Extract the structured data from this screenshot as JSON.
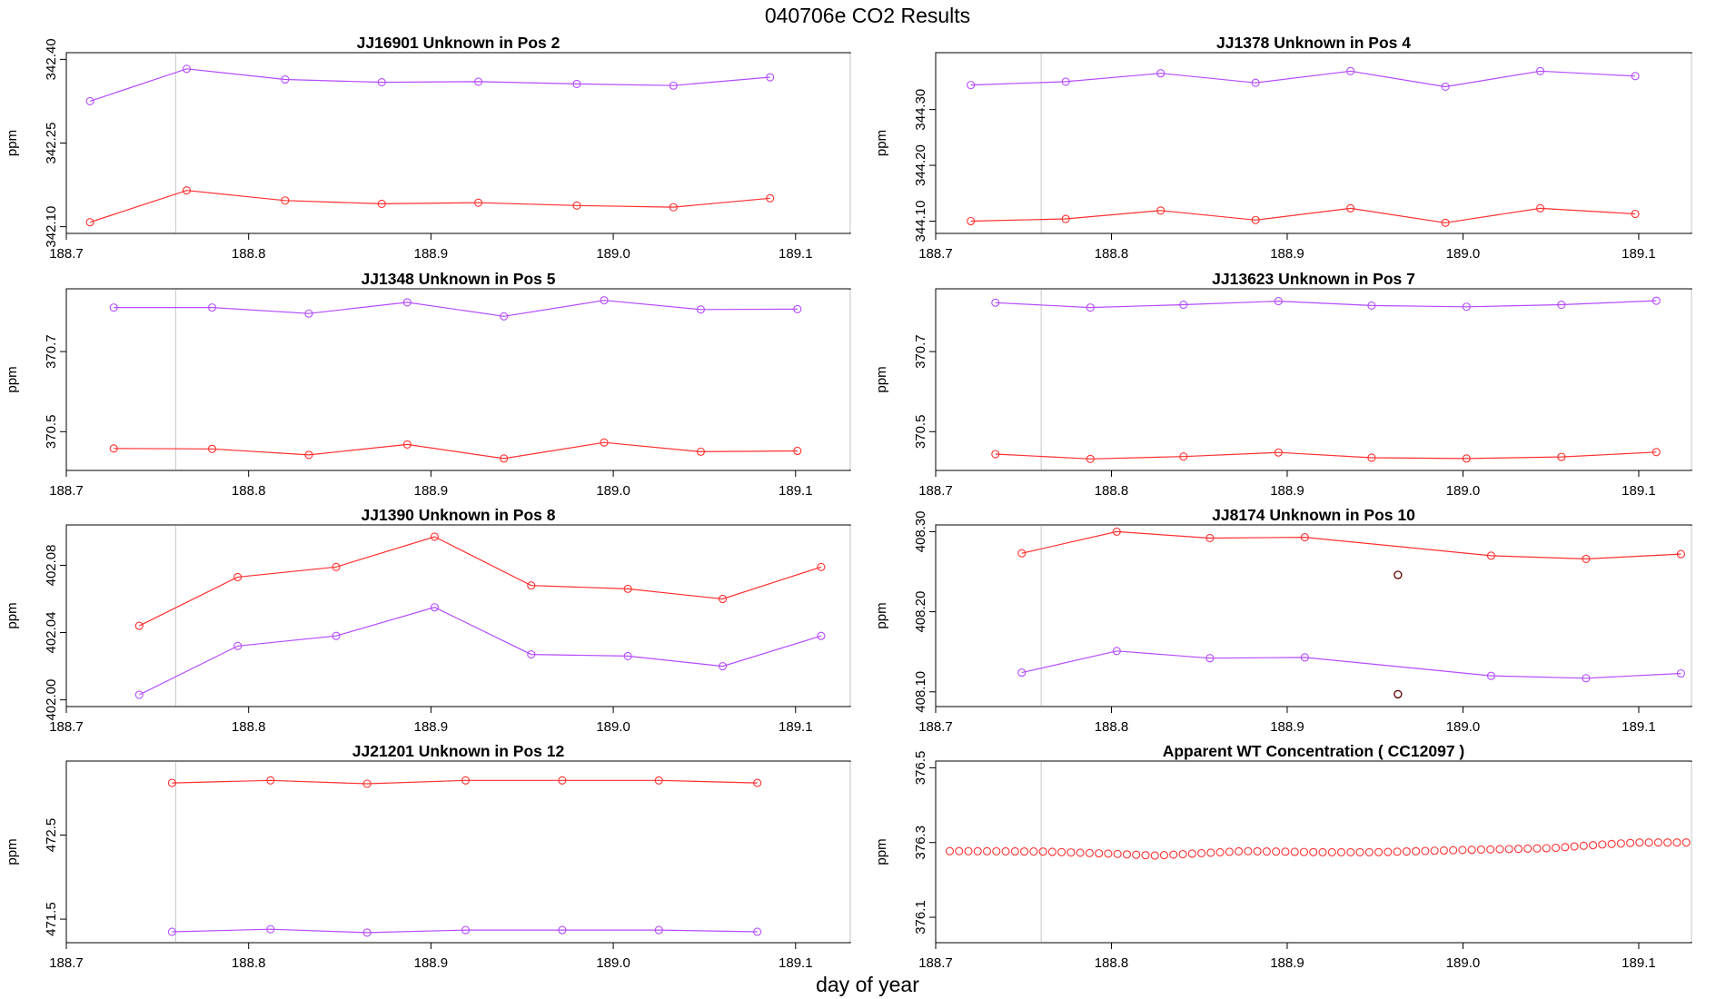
{
  "page": {
    "title": "040706e  CO2 Results",
    "xlabel": "day of year"
  },
  "colors": {
    "red": "#ff3030",
    "purple": "#b44cff",
    "dark": "#600000",
    "vline": "#d0d0d0"
  },
  "chart_data": [
    {
      "type": "line",
      "title": "JJ16901    Unknown in Pos 2",
      "ylabel": "ppm",
      "xlim": [
        188.7,
        189.13
      ],
      "ylim": [
        342.1,
        342.4
      ],
      "xticks": [
        "188.7",
        "188.8",
        "188.9",
        "189.0",
        "189.1"
      ],
      "yticks": [
        "342.10",
        "342.25",
        "342.40"
      ],
      "vlines": [
        188.76,
        189.13
      ],
      "series": [
        {
          "name": "purple",
          "color": "purple",
          "x": [
            188.713,
            188.766,
            188.82,
            188.873,
            188.926,
            188.98,
            189.033,
            189.086
          ],
          "y": [
            342.325,
            342.383,
            342.364,
            342.359,
            342.36,
            342.356,
            342.353,
            342.368
          ]
        },
        {
          "name": "red",
          "color": "red",
          "x": [
            188.713,
            188.766,
            188.82,
            188.873,
            188.926,
            188.98,
            189.033,
            189.086
          ],
          "y": [
            342.108,
            342.165,
            342.147,
            342.141,
            342.143,
            342.138,
            342.135,
            342.151
          ]
        }
      ]
    },
    {
      "type": "line",
      "title": "JJ1378    Unknown in Pos 4",
      "ylabel": "ppm",
      "xlim": [
        188.7,
        189.13
      ],
      "ylim": [
        344.09,
        344.39
      ],
      "xticks": [
        "188.7",
        "188.8",
        "188.9",
        "189.0",
        "189.1"
      ],
      "yticks": [
        "344.10",
        "344.20",
        "344.30"
      ],
      "vlines": [
        188.76,
        189.13
      ],
      "series": [
        {
          "name": "purple",
          "color": "purple",
          "x": [
            188.72,
            188.774,
            188.828,
            188.882,
            188.936,
            188.99,
            189.044,
            189.098
          ],
          "y": [
            344.344,
            344.35,
            344.365,
            344.348,
            344.369,
            344.341,
            344.369,
            344.36
          ]
        },
        {
          "name": "red",
          "color": "red",
          "x": [
            188.72,
            188.774,
            188.828,
            188.882,
            188.936,
            188.99,
            189.044,
            189.098
          ],
          "y": [
            344.1,
            344.104,
            344.119,
            344.102,
            344.123,
            344.097,
            344.123,
            344.113
          ]
        }
      ]
    },
    {
      "type": "line",
      "title": "JJ1348    Unknown in Pos 5",
      "ylabel": "ppm",
      "xlim": [
        188.7,
        189.13
      ],
      "ylim": [
        370.42,
        370.84
      ],
      "xticks": [
        "188.7",
        "188.8",
        "188.9",
        "189.0",
        "189.1"
      ],
      "yticks": [
        "370.5",
        "370.7"
      ],
      "vlines": [
        188.76,
        189.13
      ],
      "series": [
        {
          "name": "purple",
          "color": "purple",
          "x": [
            188.726,
            188.78,
            188.833,
            188.887,
            188.94,
            188.995,
            189.048,
            189.101
          ],
          "y": [
            370.81,
            370.81,
            370.795,
            370.823,
            370.788,
            370.828,
            370.805,
            370.806
          ]
        },
        {
          "name": "red",
          "color": "red",
          "x": [
            188.726,
            188.78,
            188.833,
            188.887,
            188.94,
            188.995,
            189.048,
            189.101
          ],
          "y": [
            370.458,
            370.457,
            370.442,
            370.468,
            370.433,
            370.473,
            370.45,
            370.452
          ]
        }
      ]
    },
    {
      "type": "line",
      "title": "JJ13623    Unknown in Pos 7",
      "ylabel": "ppm",
      "xlim": [
        188.7,
        189.13
      ],
      "ylim": [
        370.42,
        370.84
      ],
      "xticks": [
        "188.7",
        "188.8",
        "188.9",
        "189.0",
        "189.1"
      ],
      "yticks": [
        "370.5",
        "370.7"
      ],
      "vlines": [
        188.76,
        189.13
      ],
      "series": [
        {
          "name": "purple",
          "color": "purple",
          "x": [
            188.734,
            188.788,
            188.841,
            188.895,
            188.948,
            189.002,
            189.056,
            189.11
          ],
          "y": [
            370.822,
            370.81,
            370.817,
            370.826,
            370.815,
            370.812,
            370.817,
            370.827
          ]
        },
        {
          "name": "red",
          "color": "red",
          "x": [
            188.734,
            188.788,
            188.841,
            188.895,
            188.948,
            189.002,
            189.056,
            189.11
          ],
          "y": [
            370.444,
            370.432,
            370.438,
            370.448,
            370.435,
            370.433,
            370.437,
            370.449
          ]
        }
      ]
    },
    {
      "type": "line",
      "title": "JJ1390    Unknown in Pos 8",
      "ylabel": "ppm",
      "xlim": [
        188.7,
        189.13
      ],
      "ylim": [
        402.0,
        402.1
      ],
      "xticks": [
        "188.7",
        "188.8",
        "188.9",
        "189.0",
        "189.1"
      ],
      "yticks": [
        "402.00",
        "402.04",
        "402.08"
      ],
      "vlines": [
        188.76,
        189.13
      ],
      "series": [
        {
          "name": "red",
          "color": "red",
          "x": [
            188.74,
            188.794,
            188.848,
            188.902,
            188.955,
            189.008,
            189.06,
            189.114
          ],
          "y": [
            402.044,
            402.073,
            402.079,
            402.097,
            402.068,
            402.066,
            402.06,
            402.079
          ]
        },
        {
          "name": "purple",
          "color": "purple",
          "x": [
            188.74,
            188.794,
            188.848,
            188.902,
            188.955,
            189.008,
            189.06,
            189.114
          ],
          "y": [
            402.003,
            402.032,
            402.038,
            402.055,
            402.027,
            402.026,
            402.02,
            402.038
          ]
        }
      ]
    },
    {
      "type": "line",
      "title": "JJ8174    Unknown in Pos 10",
      "ylabel": "ppm",
      "xlim": [
        188.7,
        189.13
      ],
      "ylim": [
        408.09,
        408.3
      ],
      "xticks": [
        "188.7",
        "188.8",
        "188.9",
        "189.0",
        "189.1"
      ],
      "yticks": [
        "408.10",
        "408.20",
        "408.30"
      ],
      "vlines": [
        188.76,
        189.13
      ],
      "series": [
        {
          "name": "red",
          "color": "red",
          "x": [
            188.749,
            188.803,
            188.856,
            188.91,
            189.016,
            189.07,
            189.124
          ],
          "y": [
            408.273,
            408.3,
            408.292,
            408.293,
            408.27,
            408.266,
            408.272
          ]
        },
        {
          "name": "purple",
          "color": "purple",
          "x": [
            188.749,
            188.803,
            188.856,
            188.91,
            189.016,
            189.07,
            189.124
          ],
          "y": [
            408.124,
            408.151,
            408.142,
            408.143,
            408.12,
            408.117,
            408.123
          ]
        }
      ],
      "points": [
        {
          "name": "outlier-upper",
          "color": "dark",
          "x": 188.963,
          "y": 408.246
        },
        {
          "name": "outlier-lower",
          "color": "dark",
          "x": 188.963,
          "y": 408.097
        }
      ]
    },
    {
      "type": "line",
      "title": "JJ21201    Unknown in Pos 12",
      "ylabel": "ppm",
      "xlim": [
        188.7,
        189.13
      ],
      "ylim": [
        471.3,
        473.3
      ],
      "xticks": [
        "188.7",
        "188.8",
        "188.9",
        "189.0",
        "189.1"
      ],
      "yticks": [
        "471.5",
        "472.5"
      ],
      "vlines": [
        188.76,
        189.13
      ],
      "series": [
        {
          "name": "red",
          "color": "red",
          "x": [
            188.758,
            188.812,
            188.865,
            188.919,
            188.972,
            189.025,
            189.079
          ],
          "y": [
            473.12,
            473.15,
            473.11,
            473.15,
            473.15,
            473.15,
            473.12
          ]
        },
        {
          "name": "purple",
          "color": "purple",
          "x": [
            188.758,
            188.812,
            188.865,
            188.919,
            188.972,
            189.025,
            189.079
          ],
          "y": [
            471.35,
            471.38,
            471.34,
            471.37,
            471.37,
            471.37,
            471.35
          ]
        }
      ]
    },
    {
      "type": "scatter",
      "title": "Apparent WT Concentration ( CC12097 )",
      "ylabel": "ppm",
      "xlim": [
        188.7,
        189.13
      ],
      "ylim": [
        376.05,
        376.5
      ],
      "xticks": [
        "188.7",
        "188.8",
        "188.9",
        "189.0",
        "189.1"
      ],
      "yticks": [
        "376.1",
        "376.3",
        "376.5"
      ],
      "vlines": [
        188.76,
        189.13
      ],
      "scatter": {
        "color": "red",
        "x_start": 188.708,
        "x_end": 189.127,
        "count": 80,
        "knots_x": [
          188.708,
          188.76,
          188.8,
          188.825,
          188.845,
          188.875,
          188.92,
          188.95,
          189.0,
          189.05,
          189.08,
          189.1,
          189.127
        ],
        "knots_y": [
          376.277,
          376.276,
          376.27,
          376.265,
          376.27,
          376.277,
          376.274,
          376.274,
          376.28,
          376.285,
          376.295,
          376.3,
          376.3
        ]
      }
    }
  ]
}
